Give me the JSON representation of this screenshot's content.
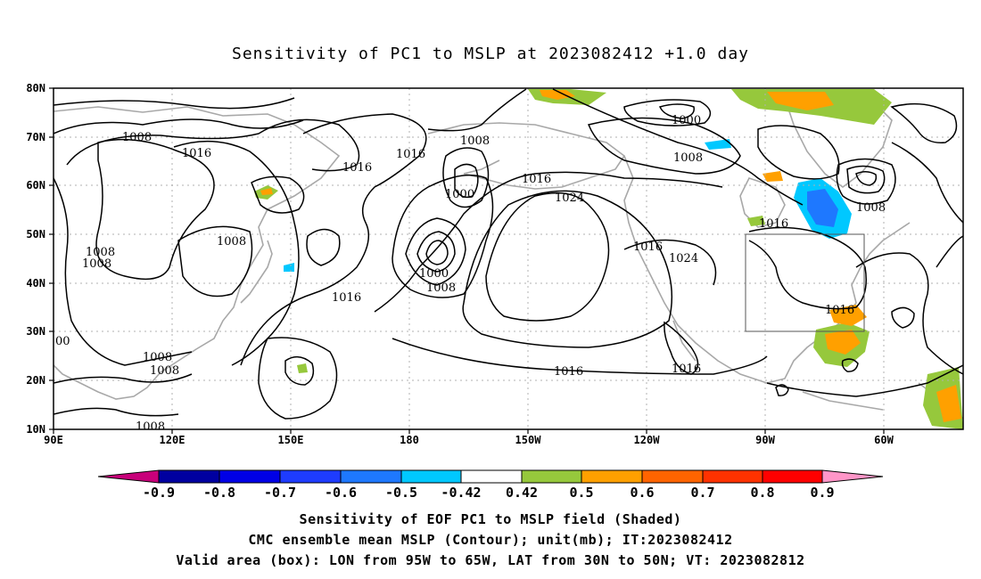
{
  "title": "Sensitivity of PC1 to MSLP at 2023082412 +1.0 day",
  "lon_ticks": [
    "90E",
    "120E",
    "150E",
    "180",
    "150W",
    "120W",
    "90W",
    "60W"
  ],
  "lat_ticks": [
    "80N",
    "70N",
    "60N",
    "50N",
    "40N",
    "30N",
    "20N",
    "10N"
  ],
  "contour_labels": [
    "1008",
    "1016",
    "1016",
    "1008",
    "1008",
    "00",
    "1008",
    "1016",
    "1016",
    "1000",
    "1008",
    "1016",
    "1008",
    "1000",
    "1008",
    "1016",
    "1024",
    "1016",
    "1000",
    "1008",
    "1016",
    "1024",
    "1016",
    "1008",
    "1016",
    "1008",
    "1008"
  ],
  "colorbar": {
    "ticks": [
      "-0.9",
      "-0.8",
      "-0.7",
      "-0.6",
      "-0.5",
      "-0.42",
      "0.42",
      "0.5",
      "0.6",
      "0.7",
      "0.8",
      "0.9"
    ],
    "colors": [
      "#c8007a",
      "#0000a0",
      "#0000e6",
      "#1e3cff",
      "#1e78ff",
      "#00c8ff",
      "#ffffff",
      "#96c83c",
      "#ffa000",
      "#ff6400",
      "#ff3200",
      "#ff0000",
      "#ff96c8"
    ]
  },
  "validation_box": {
    "lon_min": -95,
    "lon_max": -65,
    "lat_min": 30,
    "lat_max": 50
  },
  "footer": [
    "Sensitivity of EOF PC1 to MSLP field (Shaded)",
    "CMC ensemble mean MSLP (Contour); unit(mb); IT:2023082412",
    "Valid area (box): LON from 95W to 65W, LAT from 30N to 50N; VT: 2023082812"
  ]
}
